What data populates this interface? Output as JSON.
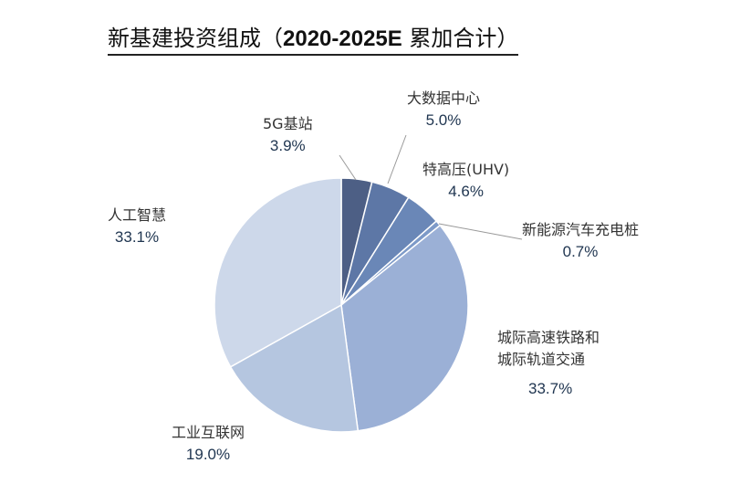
{
  "chart_data": {
    "type": "pie",
    "title_main": "新基建投资组成（",
    "title_bold": "2020-2025E",
    "title_tail": " 累加合计）",
    "start": "top",
    "direction": "clockwise",
    "slices": [
      {
        "label": "5G基站",
        "value": 3.9,
        "pct": "3.9%",
        "color": "#4d5f85"
      },
      {
        "label": "大数据中心",
        "value": 5.0,
        "pct": "5.0%",
        "color": "#5d77a6"
      },
      {
        "label": "特高压(UHV)",
        "value": 4.6,
        "pct": "4.6%",
        "color": "#6a87b7"
      },
      {
        "label": "新能源汽车充电桩",
        "value": 0.7,
        "pct": "0.7%",
        "color": "#7d9ac8"
      },
      {
        "label": "城际高速铁路和\n城际轨道交通",
        "value": 33.7,
        "pct": "33.7%",
        "color": "#9bb0d6"
      },
      {
        "label": "工业互联网",
        "value": 19.0,
        "pct": "19.0%",
        "color": "#b5c6e0"
      },
      {
        "label": "人工智慧",
        "value": 33.1,
        "pct": "33.1%",
        "color": "#cdd8ea"
      }
    ]
  }
}
